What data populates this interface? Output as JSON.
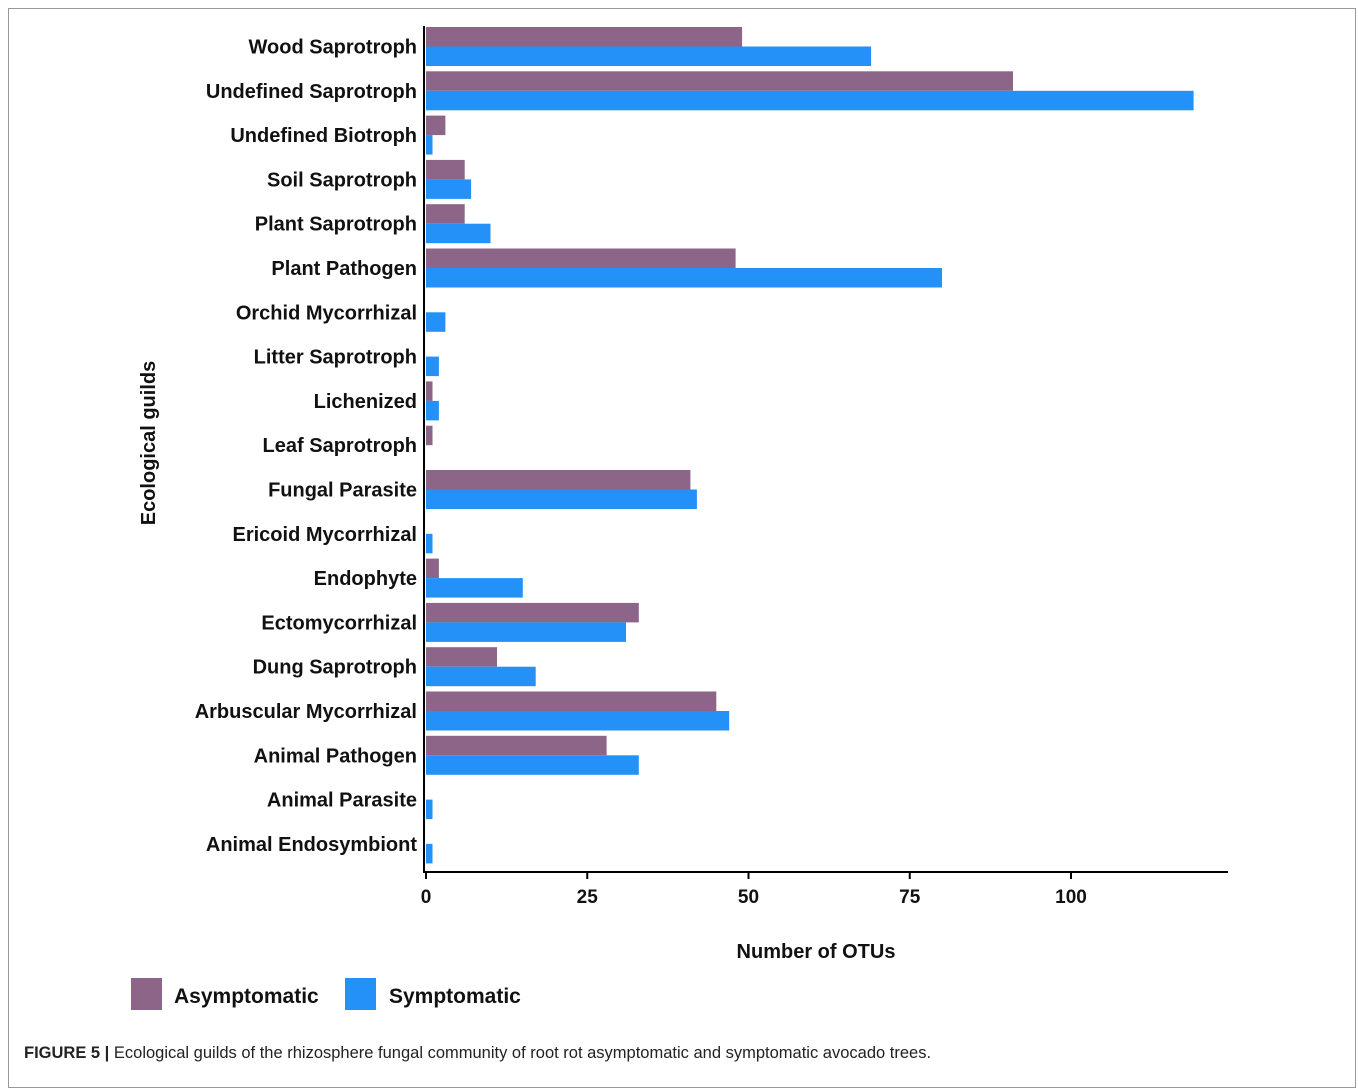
{
  "caption": {
    "label": "FIGURE 5 |",
    "text": " Ecological guilds of the rhizosphere fungal community of root rot asymptomatic and symptomatic avocado trees."
  },
  "chart_data": {
    "type": "bar",
    "orientation": "horizontal",
    "xlabel": "Number of OTUs",
    "ylabel": "Ecological guilds",
    "xlim": [
      0,
      124
    ],
    "xticks": [
      0,
      25,
      50,
      75,
      100
    ],
    "grid": false,
    "legend_position": "bottom-left",
    "categories": [
      "Wood Saprotroph",
      "Undefined Saprotroph",
      "Undefined Biotroph",
      "Soil Saprotroph",
      "Plant Saprotroph",
      "Plant Pathogen",
      "Orchid Mycorrhizal",
      "Litter Saprotroph",
      "Lichenized",
      "Leaf Saprotroph",
      "Fungal Parasite",
      "Ericoid Mycorrhizal",
      "Endophyte",
      "Ectomycorrhizal",
      "Dung Saprotroph",
      "Arbuscular Mycorrhizal",
      "Animal Pathogen",
      "Animal Parasite",
      "Animal Endosymbiont"
    ],
    "series": [
      {
        "name": "Asymptomatic",
        "color": "#8c6589",
        "values": [
          49,
          91,
          3,
          6,
          6,
          48,
          0,
          0,
          1,
          1,
          41,
          0,
          2,
          33,
          11,
          45,
          28,
          0,
          0
        ]
      },
      {
        "name": "Symptomatic",
        "color": "#2391f8",
        "values": [
          69,
          119,
          1,
          7,
          10,
          80,
          3,
          2,
          2,
          0,
          42,
          1,
          15,
          31,
          17,
          47,
          33,
          1,
          1
        ]
      }
    ]
  }
}
